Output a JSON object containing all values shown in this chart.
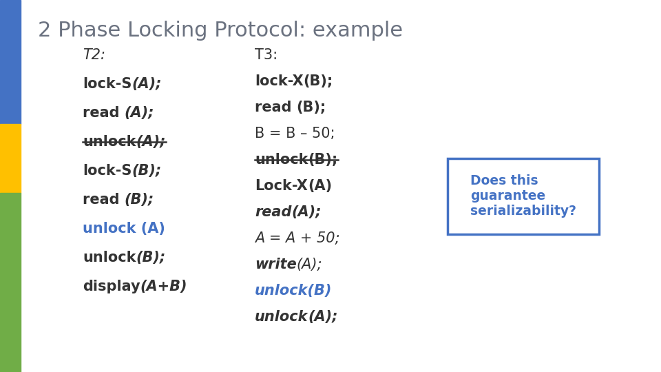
{
  "title": "2 Phase Locking Protocol: example",
  "title_color": "#6b7280",
  "bg_color": "#ffffff",
  "sidebar_colors": [
    "#4472c4",
    "#ffc000",
    "#70ad47"
  ],
  "t2_lines": [
    {
      "segments": [
        {
          "text": "T2:",
          "weight": "normal",
          "style": "italic",
          "color": "#333333"
        }
      ],
      "strikethrough": false
    },
    {
      "segments": [
        {
          "text": "lock-S",
          "weight": "bold",
          "style": "normal",
          "color": "#333333"
        },
        {
          "text": "(A);",
          "weight": "bold",
          "style": "italic",
          "color": "#333333"
        }
      ],
      "strikethrough": false
    },
    {
      "segments": [
        {
          "text": "read ",
          "weight": "bold",
          "style": "normal",
          "color": "#333333"
        },
        {
          "text": "(A);",
          "weight": "bold",
          "style": "italic",
          "color": "#333333"
        }
      ],
      "strikethrough": false
    },
    {
      "segments": [
        {
          "text": "unlock",
          "weight": "bold",
          "style": "normal",
          "color": "#333333"
        },
        {
          "text": "(A);",
          "weight": "bold",
          "style": "italic",
          "color": "#333333"
        }
      ],
      "strikethrough": true
    },
    {
      "segments": [
        {
          "text": "lock-S",
          "weight": "bold",
          "style": "normal",
          "color": "#333333"
        },
        {
          "text": "(B);",
          "weight": "bold",
          "style": "italic",
          "color": "#333333"
        }
      ],
      "strikethrough": false
    },
    {
      "segments": [
        {
          "text": "read ",
          "weight": "bold",
          "style": "normal",
          "color": "#333333"
        },
        {
          "text": "(B);",
          "weight": "bold",
          "style": "italic",
          "color": "#333333"
        }
      ],
      "strikethrough": false
    },
    {
      "segments": [
        {
          "text": "unlock (A)",
          "weight": "bold",
          "style": "normal",
          "color": "#4472c4"
        }
      ],
      "strikethrough": false
    },
    {
      "segments": [
        {
          "text": "unlock",
          "weight": "bold",
          "style": "normal",
          "color": "#333333"
        },
        {
          "text": "(B);",
          "weight": "bold",
          "style": "italic",
          "color": "#333333"
        }
      ],
      "strikethrough": false
    },
    {
      "segments": [
        {
          "text": "display",
          "weight": "bold",
          "style": "normal",
          "color": "#333333"
        },
        {
          "text": "(A+B)",
          "weight": "bold",
          "style": "italic",
          "color": "#333333"
        }
      ],
      "strikethrough": false
    }
  ],
  "t3_lines": [
    {
      "segments": [
        {
          "text": "T3:",
          "weight": "normal",
          "style": "normal",
          "color": "#333333"
        }
      ],
      "strikethrough": false
    },
    {
      "segments": [
        {
          "text": "lock-X",
          "weight": "bold",
          "style": "normal",
          "color": "#333333"
        },
        {
          "text": "(B);",
          "weight": "bold",
          "style": "normal",
          "color": "#333333"
        }
      ],
      "strikethrough": false
    },
    {
      "segments": [
        {
          "text": "read ",
          "weight": "bold",
          "style": "normal",
          "color": "#333333"
        },
        {
          "text": "(B);",
          "weight": "bold",
          "style": "normal",
          "color": "#333333"
        }
      ],
      "strikethrough": false
    },
    {
      "segments": [
        {
          "text": "B = B – 50;",
          "weight": "normal",
          "style": "normal",
          "color": "#333333"
        }
      ],
      "strikethrough": false
    },
    {
      "segments": [
        {
          "text": "unlock",
          "weight": "bold",
          "style": "normal",
          "color": "#333333"
        },
        {
          "text": "(B);",
          "weight": "bold",
          "style": "normal",
          "color": "#333333"
        }
      ],
      "strikethrough": true
    },
    {
      "segments": [
        {
          "text": "Lock-X",
          "weight": "bold",
          "style": "normal",
          "color": "#333333"
        },
        {
          "text": "(A)",
          "weight": "bold",
          "style": "normal",
          "color": "#333333"
        }
      ],
      "strikethrough": false
    },
    {
      "segments": [
        {
          "text": "read",
          "weight": "bold",
          "style": "italic",
          "color": "#333333"
        },
        {
          "text": "(A);",
          "weight": "bold",
          "style": "italic",
          "color": "#333333"
        }
      ],
      "strikethrough": false
    },
    {
      "segments": [
        {
          "text": "A = A + 50;",
          "weight": "normal",
          "style": "italic",
          "color": "#333333"
        }
      ],
      "strikethrough": false
    },
    {
      "segments": [
        {
          "text": "write",
          "weight": "bold",
          "style": "italic",
          "color": "#333333"
        },
        {
          "text": "(A);",
          "weight": "normal",
          "style": "italic",
          "color": "#333333"
        }
      ],
      "strikethrough": false
    },
    {
      "segments": [
        {
          "text": "unlock(B)",
          "weight": "bold",
          "style": "italic",
          "color": "#4472c4"
        }
      ],
      "strikethrough": false
    },
    {
      "segments": [
        {
          "text": "unlock",
          "weight": "bold",
          "style": "italic",
          "color": "#333333"
        },
        {
          "text": "(A);",
          "weight": "bold",
          "style": "italic",
          "color": "#333333"
        }
      ],
      "strikethrough": false
    }
  ],
  "box_text": "Does this\nguarantee\nserializability?",
  "box_color": "#4472c4",
  "box_text_color": "#4472c4",
  "font_size": 15,
  "title_fontsize": 22
}
